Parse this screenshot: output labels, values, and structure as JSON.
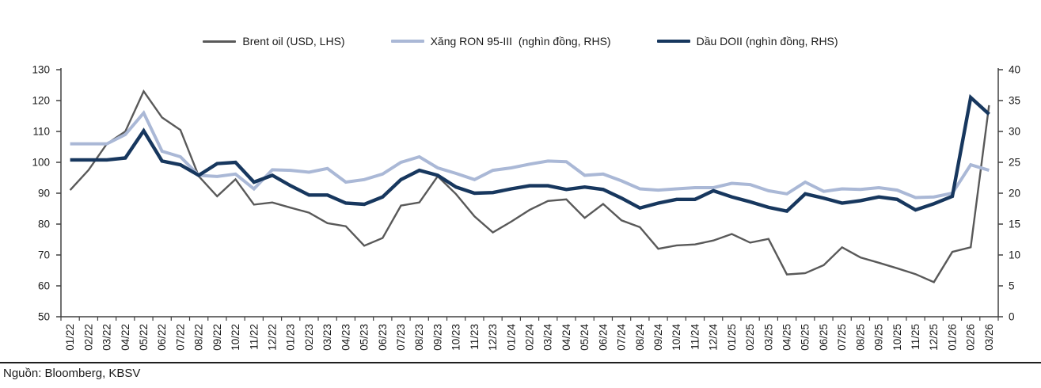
{
  "source": "Nguồn: Bloomberg, KBSV",
  "colors": {
    "brent": "#595959",
    "xang_ron95": "#aab8d6",
    "dau_doii": "#17375e",
    "axis": "#404040",
    "tick_label": "#1a1a1a",
    "divider": "#1f1f1f"
  },
  "legend": [
    {
      "key": "brent",
      "label": "Brent oil (USD, LHS)",
      "color": "#595959",
      "thickness": 3
    },
    {
      "key": "xang-ron95",
      "label": "Xăng RON 95-III  (nghìn đồng, RHS)",
      "color": "#aab8d6",
      "thickness": 4
    },
    {
      "key": "dau-doii",
      "label": "Dầu DOII (nghìn đồng, RHS)",
      "color": "#17375e",
      "thickness": 4
    }
  ],
  "chart_data": {
    "type": "line",
    "title": "",
    "xlabel": "",
    "ylabel_left": "",
    "ylabel_right": "",
    "grid": false,
    "legend_position": "top",
    "left_axis": {
      "min": 50,
      "max": 130,
      "step": 10
    },
    "right_axis": {
      "min": 0,
      "max": 40,
      "step": 5
    },
    "categories": [
      "01/22",
      "02/22",
      "03/22",
      "04/22",
      "05/22",
      "06/22",
      "07/22",
      "08/22",
      "09/22",
      "10/22",
      "11/22",
      "12/22",
      "01/23",
      "02/23",
      "03/23",
      "04/23",
      "05/23",
      "06/23",
      "07/23",
      "08/23",
      "09/23",
      "10/23",
      "11/23",
      "12/23",
      "01/24",
      "02/24",
      "03/24",
      "04/24",
      "05/24",
      "06/24",
      "07/24",
      "08/24",
      "09/24",
      "10/24",
      "11/24",
      "12/24",
      "01/25",
      "02/25",
      "03/25",
      "04/25",
      "05/25",
      "06/25",
      "07/25",
      "08/25",
      "09/25",
      "10/25",
      "11/25",
      "12/25",
      "01/26",
      "02/26",
      "03/26"
    ],
    "series": [
      {
        "key": "brent",
        "name": "Brent oil (USD, LHS)",
        "axis": "left",
        "color": "#595959",
        "width": 2.4,
        "values": [
          91,
          97.5,
          106,
          110,
          123,
          114.5,
          110.5,
          95.5,
          89,
          94.5,
          86.3,
          87,
          85.3,
          83.7,
          80.3,
          79.3,
          73,
          75.5,
          86,
          87,
          95.5,
          89.7,
          82.5,
          77.3,
          80.8,
          84.6,
          87.5,
          88,
          82,
          86.5,
          81.2,
          79,
          72,
          73.1,
          73.4,
          74.7,
          76.8,
          74,
          75.2,
          63.7,
          64.1,
          66.7,
          72.5,
          69.2,
          67.5,
          65.7,
          63.8,
          61.2,
          71,
          72.5,
          118.5
        ]
      },
      {
        "key": "xang-ron95",
        "name": "Xăng RON 95-III (nghìn đồng, RHS)",
        "axis": "right",
        "color": "#aab8d6",
        "width": 4,
        "values": [
          28,
          28,
          28,
          29.5,
          33,
          26.8,
          25.9,
          22.9,
          22.7,
          23.1,
          20.7,
          23.8,
          23.7,
          23.4,
          24,
          21.8,
          22.2,
          23.1,
          25,
          25.9,
          24.1,
          23.2,
          22.2,
          23.7,
          24.1,
          24.7,
          25.2,
          25.1,
          22.9,
          23.1,
          22,
          20.7,
          20.5,
          20.7,
          20.9,
          20.9,
          21.6,
          21.4,
          20.4,
          19.9,
          21.8,
          20.3,
          20.7,
          20.6,
          20.9,
          20.5,
          19.3,
          19.4,
          20,
          24.6,
          23.7
        ]
      },
      {
        "key": "dau-doii",
        "name": "Dầu DOII (nghìn đồng, RHS)",
        "axis": "right",
        "color": "#17375e",
        "width": 4.4,
        "values": [
          25.4,
          25.4,
          25.4,
          25.7,
          30.1,
          25.2,
          24.6,
          22.9,
          24.8,
          25,
          21.8,
          22.9,
          21.2,
          19.7,
          19.7,
          18.4,
          18.2,
          19.4,
          22.2,
          23.7,
          22.9,
          21,
          20,
          20.1,
          20.7,
          21.2,
          21.2,
          20.6,
          21,
          20.6,
          19.2,
          17.6,
          18.4,
          19,
          19,
          20.4,
          19.4,
          18.6,
          17.7,
          17.1,
          19.9,
          19.2,
          18.4,
          18.8,
          19.4,
          19,
          17.3,
          18.3,
          19.5,
          35.5,
          32.8
        ]
      }
    ]
  }
}
